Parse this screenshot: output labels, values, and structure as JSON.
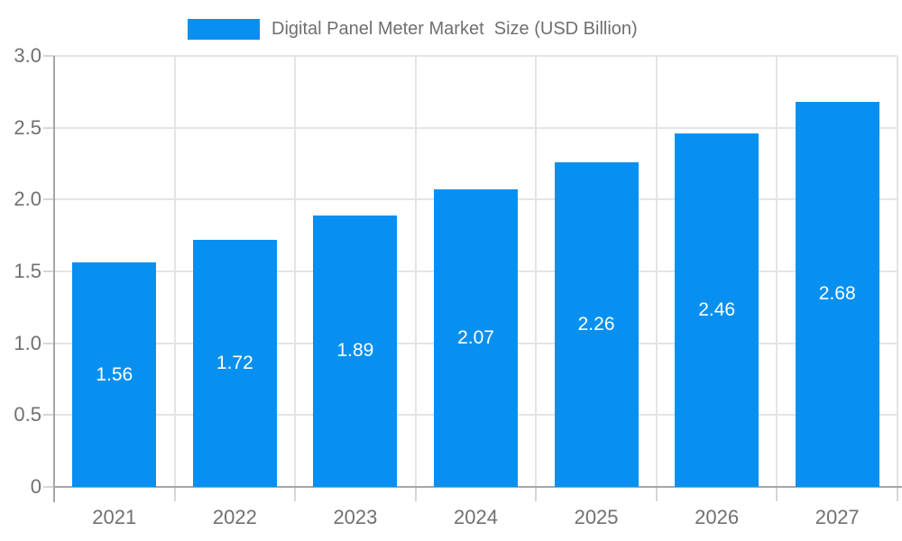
{
  "chart_data": {
    "type": "bar",
    "title": "Digital Panel Meter Market  Size (USD Billion)",
    "categories": [
      "2021",
      "2022",
      "2023",
      "2024",
      "2025",
      "2026",
      "2027"
    ],
    "values": [
      1.56,
      1.72,
      1.89,
      2.07,
      2.26,
      2.46,
      2.68
    ],
    "value_labels": [
      "1.56",
      "1.72",
      "1.89",
      "2.07",
      "2.26",
      "2.46",
      "2.68"
    ],
    "xlabel": "",
    "ylabel": "",
    "ylim": [
      0,
      3.0
    ],
    "y_ticks": [
      0,
      0.5,
      1.0,
      1.5,
      2.0,
      2.5,
      3.0
    ],
    "y_tick_labels": [
      "0",
      "0.5",
      "1.0",
      "1.5",
      "2.0",
      "2.5",
      "3.0"
    ],
    "grid": true,
    "legend_position": "top",
    "bar_color": "#0890f0",
    "value_label_color": "#ffffff"
  },
  "colors": {
    "bar": "#0890f0",
    "gridline": "#e4e4e4",
    "axis": "#a6a6a6",
    "tick": "#d6d6d6",
    "text": "#707070",
    "background": "#ffffff"
  }
}
